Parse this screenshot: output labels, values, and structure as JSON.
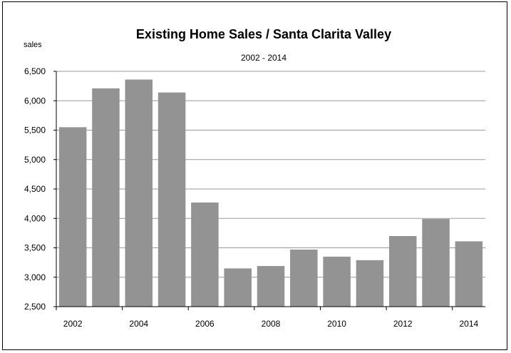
{
  "chart_data": {
    "type": "bar",
    "title": "Existing Home Sales / Santa Clarita Valley",
    "subtitle": "2002 - 2014",
    "ylabel": "sales",
    "xlabel": "",
    "categories": [
      "2002",
      "2003",
      "2004",
      "2005",
      "2006",
      "2007",
      "2008",
      "2009",
      "2010",
      "2011",
      "2012",
      "2013",
      "2014"
    ],
    "values": [
      5550,
      6210,
      6360,
      6140,
      4270,
      3150,
      3190,
      3470,
      3350,
      3290,
      3700,
      3990,
      3610
    ],
    "ylim": [
      2500,
      6500
    ],
    "yticks": [
      2500,
      3000,
      3500,
      4000,
      4500,
      5000,
      5500,
      6000,
      6500
    ],
    "ytick_labels": [
      "2,500",
      "3,000",
      "3,500",
      "4,000",
      "4,500",
      "5,000",
      "5,500",
      "6,000",
      "6,500"
    ],
    "xtick_labels": [
      "2002",
      "2004",
      "2006",
      "2008",
      "2010",
      "2012",
      "2014"
    ],
    "grid": true,
    "legend": "none",
    "bar_color": "#939393",
    "grid_color": "#9a9a9a"
  }
}
